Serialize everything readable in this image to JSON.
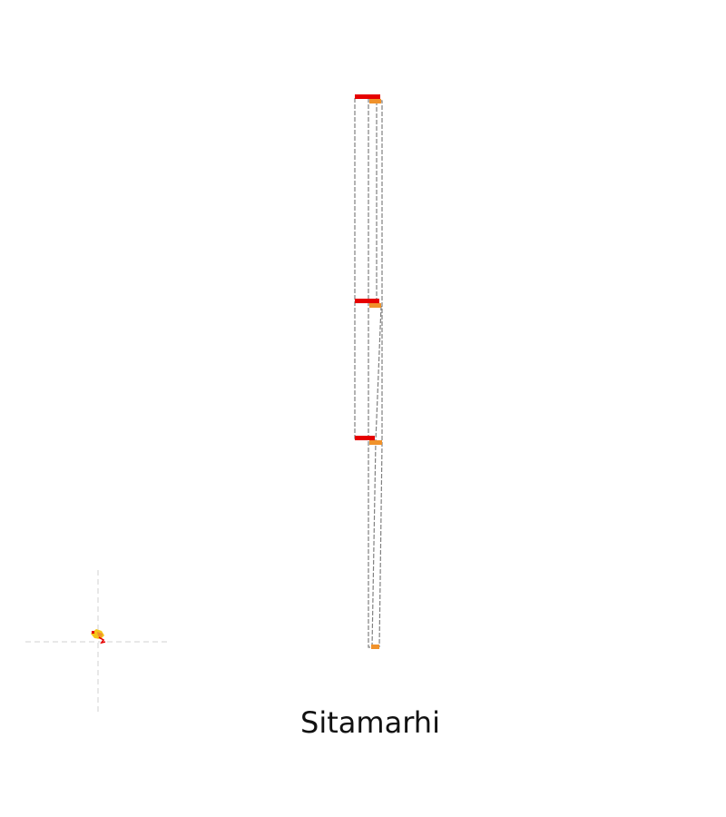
{
  "map": {
    "region_name": "Sitamarhi",
    "colors": {
      "marker_red": "#e60000",
      "marker_orange": "#f0922b",
      "marker_yellow": "#f5c518",
      "outline_dash": "#808080",
      "crosshair": "#d9d9d9"
    },
    "icons": {
      "locator": "locator-crosshair-icon"
    }
  }
}
